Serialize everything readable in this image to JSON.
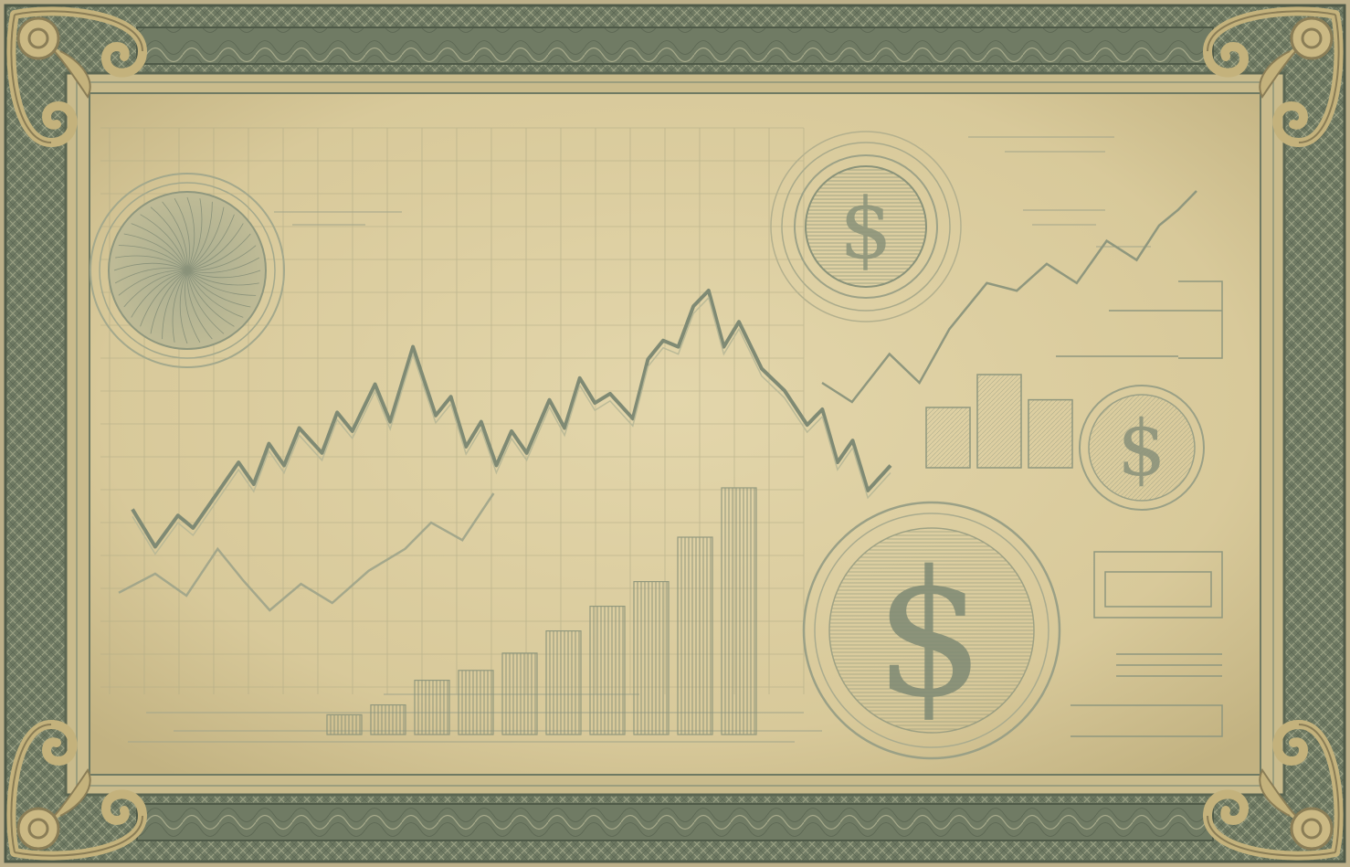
{
  "colors": {
    "paper": "#d8c99a",
    "paper_light": "#e3d6ab",
    "paper_dark": "#c2b281",
    "frame_green": "#6f7a63",
    "frame_dark": "#4f5a48",
    "ornament_gold": "#c4b27c",
    "ink": "#7d8a78",
    "ink_light": "#a4aa8e"
  },
  "icons": {
    "corner": "ornamental-scroll-icon",
    "medallion": "rosette-medallion-icon",
    "coin": "dollar-coin-icon"
  },
  "art": {
    "main_line": [
      [
        0.0,
        0.3
      ],
      [
        0.03,
        0.18
      ],
      [
        0.06,
        0.28
      ],
      [
        0.08,
        0.24
      ],
      [
        0.1,
        0.31
      ],
      [
        0.14,
        0.45
      ],
      [
        0.16,
        0.38
      ],
      [
        0.18,
        0.51
      ],
      [
        0.2,
        0.44
      ],
      [
        0.22,
        0.56
      ],
      [
        0.25,
        0.48
      ],
      [
        0.27,
        0.61
      ],
      [
        0.29,
        0.55
      ],
      [
        0.32,
        0.7
      ],
      [
        0.34,
        0.58
      ],
      [
        0.37,
        0.82
      ],
      [
        0.4,
        0.6
      ],
      [
        0.42,
        0.66
      ],
      [
        0.44,
        0.5
      ],
      [
        0.46,
        0.58
      ],
      [
        0.48,
        0.44
      ],
      [
        0.5,
        0.55
      ],
      [
        0.52,
        0.48
      ],
      [
        0.55,
        0.65
      ],
      [
        0.57,
        0.56
      ],
      [
        0.59,
        0.72
      ],
      [
        0.61,
        0.64
      ],
      [
        0.63,
        0.67
      ],
      [
        0.66,
        0.59
      ],
      [
        0.68,
        0.78
      ],
      [
        0.7,
        0.84
      ],
      [
        0.72,
        0.82
      ],
      [
        0.74,
        0.95
      ],
      [
        0.76,
        1.0
      ],
      [
        0.78,
        0.82
      ],
      [
        0.8,
        0.9
      ],
      [
        0.83,
        0.75
      ],
      [
        0.86,
        0.68
      ],
      [
        0.89,
        0.57
      ],
      [
        0.91,
        0.62
      ],
      [
        0.93,
        0.45
      ],
      [
        0.95,
        0.52
      ],
      [
        0.97,
        0.36
      ],
      [
        1.0,
        0.44
      ]
    ],
    "lower_line": [
      [
        0.0,
        0.32
      ],
      [
        0.07,
        0.45
      ],
      [
        0.13,
        0.3
      ],
      [
        0.19,
        0.62
      ],
      [
        0.24,
        0.4
      ],
      [
        0.29,
        0.2
      ],
      [
        0.35,
        0.38
      ],
      [
        0.41,
        0.25
      ],
      [
        0.48,
        0.47
      ],
      [
        0.55,
        0.62
      ],
      [
        0.6,
        0.8
      ],
      [
        0.66,
        0.68
      ],
      [
        0.72,
        1.0
      ]
    ],
    "right_line": [
      [
        0.0,
        0.1
      ],
      [
        0.08,
        0.0
      ],
      [
        0.18,
        0.25
      ],
      [
        0.26,
        0.1
      ],
      [
        0.34,
        0.38
      ],
      [
        0.44,
        0.62
      ],
      [
        0.52,
        0.58
      ],
      [
        0.6,
        0.72
      ],
      [
        0.68,
        0.62
      ],
      [
        0.76,
        0.84
      ],
      [
        0.84,
        0.74
      ],
      [
        0.9,
        0.92
      ],
      [
        0.95,
        1.0
      ],
      [
        1.0,
        1.1
      ]
    ],
    "bars": [
      0.08,
      0.12,
      0.22,
      0.26,
      0.33,
      0.42,
      0.52,
      0.62,
      0.8,
      1.0
    ],
    "right_bars": [
      0.55,
      0.85,
      0.62
    ]
  }
}
